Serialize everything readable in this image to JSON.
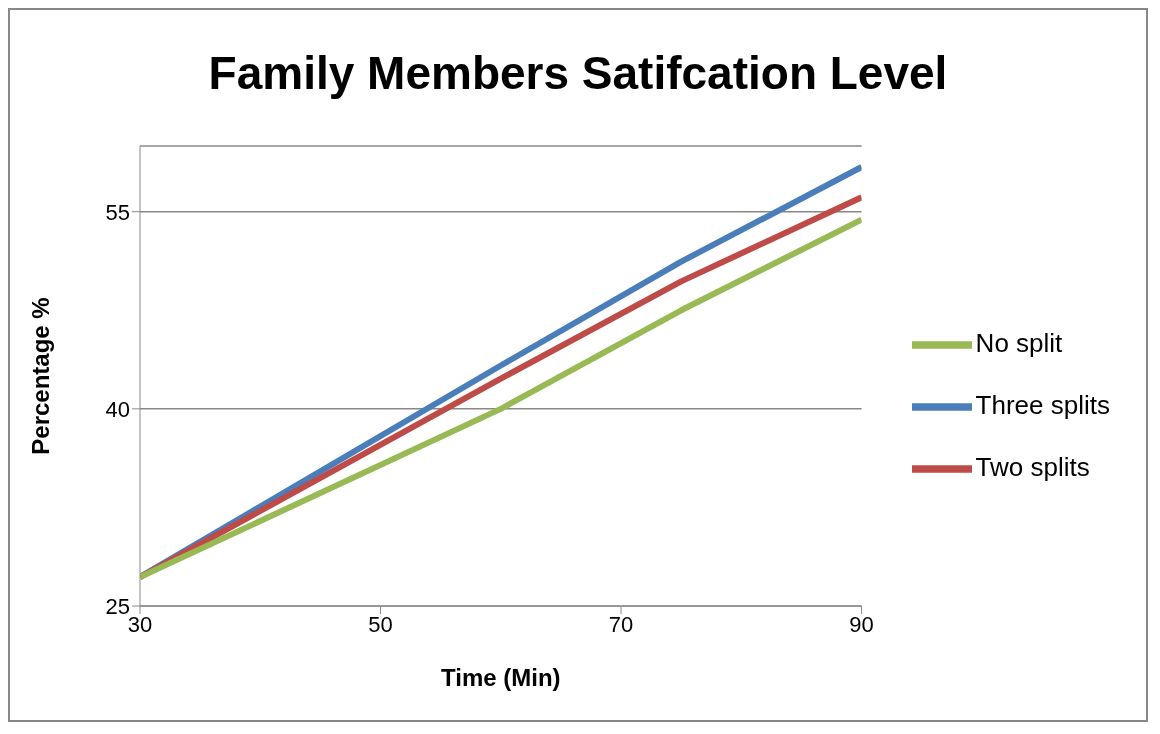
{
  "chart_data": {
    "type": "line",
    "title": "Family Members Satifcation Level",
    "xlabel": "Time (Min)",
    "ylabel": "Percentage %",
    "x": [
      30,
      60,
      75,
      90
    ],
    "series": [
      {
        "name": "Three splits",
        "color": "#4a7ebb",
        "values": [
          27.2,
          43.3,
          51.2,
          58.4
        ]
      },
      {
        "name": "Two splits",
        "color": "#be4b48",
        "values": [
          27.2,
          42.3,
          49.7,
          56.1
        ]
      },
      {
        "name": "No split",
        "color": "#98b954",
        "values": [
          27.2,
          40,
          47.5,
          54.4
        ]
      }
    ],
    "xlim": [
      30,
      90
    ],
    "xticks": [
      30,
      50,
      70,
      90
    ],
    "ylim": [
      25,
      60
    ],
    "yticks": [
      25,
      40,
      55
    ],
    "grid": "y",
    "legend": "right",
    "marker": "none",
    "line_style": "solid"
  }
}
